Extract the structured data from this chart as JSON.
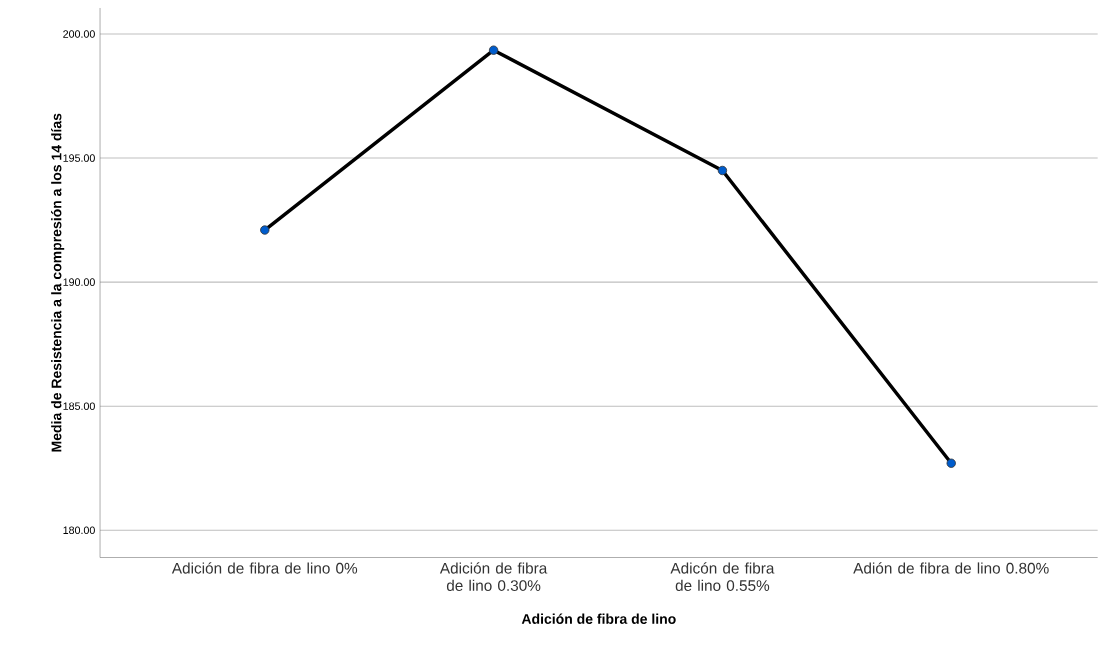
{
  "chart_data": {
    "type": "line",
    "xlabel": "Adición de fibra de lino",
    "ylabel": "Media de Resistencia a la compresión a los 14 días",
    "categories": [
      "Adición de fibra de lino 0%",
      "Adición de fibra de lino 0.30%",
      "Adicón de fibra de lino 0.55%",
      "Adión de fibra de lino 0.80%"
    ],
    "series": [
      {
        "color": "#000000",
        "values": [
          192.1,
          199.35,
          194.5,
          182.7
        ]
      }
    ],
    "ylim": [
      178.9,
      201.05
    ],
    "yticks": [
      {
        "value": 180,
        "label": "180.00"
      },
      {
        "value": 185,
        "label": "185.00"
      },
      {
        "value": 190,
        "label": "190.00"
      },
      {
        "value": 195,
        "label": "195.00"
      },
      {
        "value": 200,
        "label": "200.00"
      }
    ],
    "grid": "y",
    "marker": "circle",
    "line_style": "solid"
  }
}
